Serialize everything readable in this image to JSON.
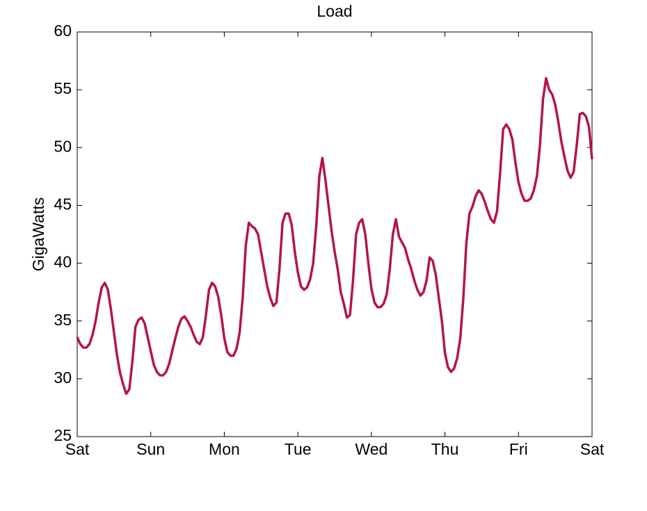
{
  "chart_data": {
    "type": "line",
    "title": "Load",
    "ylabel": "GigaWatts",
    "categories": [
      "Sat",
      null,
      null,
      null,
      null,
      null,
      null,
      null,
      null,
      null,
      null,
      null,
      null,
      null,
      null,
      null,
      null,
      null,
      null,
      null,
      null,
      null,
      null,
      null,
      "Sun",
      null,
      null,
      null,
      null,
      null,
      null,
      null,
      null,
      null,
      null,
      null,
      null,
      null,
      null,
      null,
      null,
      null,
      null,
      null,
      null,
      null,
      null,
      null,
      "Mon",
      null,
      null,
      null,
      null,
      null,
      null,
      null,
      null,
      null,
      null,
      null,
      null,
      null,
      null,
      null,
      null,
      null,
      null,
      null,
      null,
      null,
      null,
      null,
      "Tue",
      null,
      null,
      null,
      null,
      null,
      null,
      null,
      null,
      null,
      null,
      null,
      null,
      null,
      null,
      null,
      null,
      null,
      null,
      null,
      null,
      null,
      null,
      null,
      "Wed",
      null,
      null,
      null,
      null,
      null,
      null,
      null,
      null,
      null,
      null,
      null,
      null,
      null,
      null,
      null,
      null,
      null,
      null,
      null,
      null,
      null,
      null,
      null,
      "Thu",
      null,
      null,
      null,
      null,
      null,
      null,
      null,
      null,
      null,
      null,
      null,
      null,
      null,
      null,
      null,
      null,
      null,
      null,
      null,
      null,
      null,
      null,
      null,
      "Fri",
      null,
      null,
      null,
      null,
      null,
      null,
      null,
      null,
      null,
      null,
      null,
      null,
      null,
      null,
      null,
      null,
      null,
      null,
      null,
      null,
      null,
      null,
      null,
      "Sat"
    ],
    "values": [
      33.6,
      33.0,
      32.7,
      32.7,
      33.0,
      33.8,
      35.0,
      36.6,
      37.9,
      38.3,
      37.7,
      36.0,
      34.0,
      32.0,
      30.5,
      29.5,
      28.7,
      29.1,
      31.5,
      34.5,
      35.1,
      35.3,
      34.8,
      33.6,
      32.4,
      31.2,
      30.6,
      30.3,
      30.3,
      30.6,
      31.3,
      32.4,
      33.5,
      34.5,
      35.2,
      35.4,
      35.0,
      34.5,
      33.8,
      33.2,
      33.0,
      33.6,
      35.5,
      37.7,
      38.3,
      38.0,
      37.1,
      35.5,
      33.5,
      32.3,
      32.0,
      32.0,
      32.6,
      34.0,
      37.0,
      41.5,
      43.5,
      43.2,
      43.0,
      42.5,
      41.0,
      39.5,
      38.0,
      37.0,
      36.3,
      36.6,
      39.5,
      43.5,
      44.3,
      44.3,
      43.3,
      41.0,
      39.2,
      38.0,
      37.7,
      37.9,
      38.6,
      40.0,
      43.2,
      47.5,
      49.1,
      47.2,
      45.0,
      42.8,
      41.0,
      39.5,
      37.5,
      36.5,
      35.3,
      35.5,
      38.5,
      42.5,
      43.5,
      43.8,
      42.5,
      40.0,
      37.8,
      36.6,
      36.2,
      36.2,
      36.5,
      37.3,
      39.5,
      42.5,
      43.8,
      42.3,
      41.8,
      41.3,
      40.3,
      39.5,
      38.5,
      37.7,
      37.2,
      37.5,
      38.5,
      40.5,
      40.2,
      39.0,
      37.0,
      35.0,
      32.2,
      31.0,
      30.6,
      30.9,
      31.8,
      33.5,
      37.0,
      41.8,
      44.3,
      44.9,
      45.8,
      46.3,
      46.0,
      45.3,
      44.5,
      43.8,
      43.5,
      44.5,
      47.8,
      51.6,
      52.0,
      51.6,
      50.7,
      48.7,
      47.0,
      46.0,
      45.4,
      45.4,
      45.6,
      46.3,
      47.5,
      50.2,
      54.2,
      56.0,
      55.0,
      54.6,
      53.7,
      52.2,
      50.5,
      49.2,
      48.0,
      47.4,
      47.9,
      50.2,
      52.9,
      53.0,
      52.7,
      51.8,
      49.0
    ],
    "color": "#b3154a",
    "ylim": [
      25,
      60
    ],
    "yticks": [
      25,
      30,
      35,
      40,
      45,
      50,
      55,
      60
    ],
    "grid": false
  }
}
